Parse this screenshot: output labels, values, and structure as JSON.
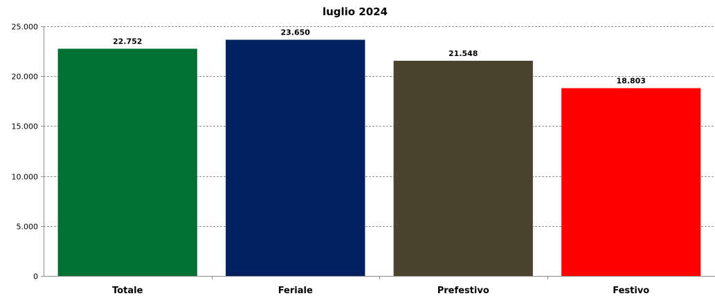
{
  "chart_data": {
    "type": "bar",
    "title": "luglio 2024",
    "categories": [
      "Totale",
      "Feriale",
      "Prefestivo",
      "Festivo"
    ],
    "values": [
      22752,
      23650,
      21548,
      18803
    ],
    "data_labels": [
      "22.752",
      "23.650",
      "21.548",
      "18.803"
    ],
    "colors": [
      "#007033",
      "#002060",
      "#4a432d",
      "#ff0000"
    ],
    "ylim": [
      0,
      25000
    ],
    "yticks": [
      0,
      5000,
      10000,
      15000,
      20000,
      25000
    ],
    "ytick_labels": [
      "0",
      "5.000",
      "10.000",
      "15.000",
      "20.000",
      "25.000"
    ],
    "grid": true,
    "legend": "none",
    "xlabel": "",
    "ylabel": ""
  }
}
